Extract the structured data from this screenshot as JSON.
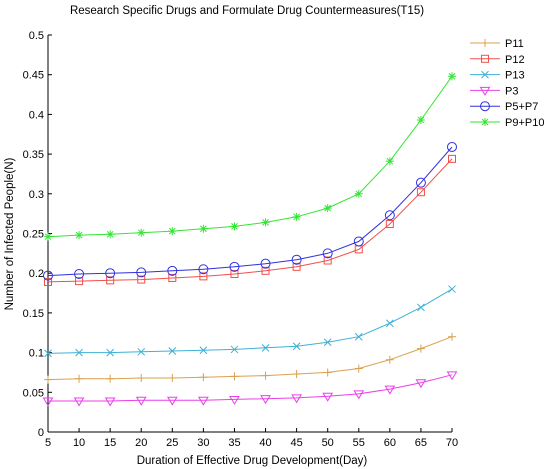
{
  "chart_data": {
    "type": "line",
    "title": "Research Specific Drugs and Formulate Drug Countermeasures(T15)",
    "xlabel": "Duration of Effective Drug Development(Day)",
    "ylabel": "Number of Infected People(N)",
    "x": [
      5,
      10,
      15,
      20,
      25,
      30,
      35,
      40,
      45,
      50,
      55,
      60,
      65,
      70
    ],
    "xlim": [
      5,
      70
    ],
    "ylim": [
      0,
      0.5
    ],
    "xticks": [
      "5",
      "10",
      "15",
      "20",
      "25",
      "30",
      "35",
      "40",
      "45",
      "50",
      "55",
      "60",
      "65",
      "70"
    ],
    "yticks": [
      "0",
      "0.05",
      "0.1",
      "0.15",
      "0.2",
      "0.25",
      "0.3",
      "0.35",
      "0.4",
      "0.45",
      "0.5"
    ],
    "grid": false,
    "legend_position": "top-right",
    "series": [
      {
        "name": "P11",
        "color": "#d9a14e",
        "marker": "plus",
        "values": [
          0.066,
          0.067,
          0.067,
          0.068,
          0.068,
          0.069,
          0.07,
          0.071,
          0.073,
          0.075,
          0.08,
          0.091,
          0.105,
          0.12
        ]
      },
      {
        "name": "P12",
        "color": "#f0504a",
        "marker": "square",
        "values": [
          0.189,
          0.19,
          0.191,
          0.192,
          0.194,
          0.196,
          0.199,
          0.203,
          0.208,
          0.216,
          0.23,
          0.262,
          0.302,
          0.344
        ]
      },
      {
        "name": "P13",
        "color": "#3fb1d6",
        "marker": "x",
        "values": [
          0.099,
          0.1,
          0.1,
          0.101,
          0.102,
          0.103,
          0.104,
          0.106,
          0.108,
          0.113,
          0.12,
          0.137,
          0.157,
          0.18
        ]
      },
      {
        "name": "P3",
        "color": "#ea3fea",
        "marker": "triangle-down",
        "values": [
          0.039,
          0.039,
          0.039,
          0.04,
          0.04,
          0.04,
          0.041,
          0.042,
          0.043,
          0.045,
          0.048,
          0.054,
          0.062,
          0.072
        ]
      },
      {
        "name": "P5+P7",
        "color": "#3030e0",
        "marker": "circle",
        "values": [
          0.197,
          0.199,
          0.2,
          0.201,
          0.203,
          0.205,
          0.208,
          0.212,
          0.217,
          0.225,
          0.24,
          0.273,
          0.314,
          0.359
        ]
      },
      {
        "name": "P9+P10",
        "color": "#33e633",
        "marker": "star",
        "values": [
          0.246,
          0.248,
          0.249,
          0.251,
          0.253,
          0.256,
          0.259,
          0.264,
          0.271,
          0.282,
          0.3,
          0.341,
          0.393,
          0.448
        ]
      }
    ]
  }
}
